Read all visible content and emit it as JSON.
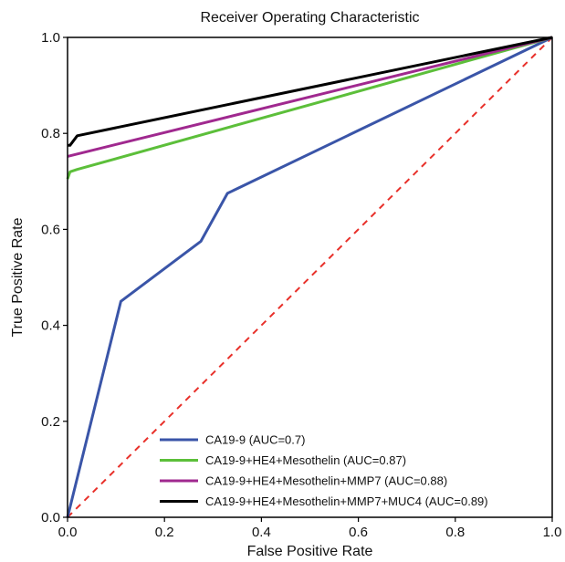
{
  "chart_data": {
    "type": "line",
    "title": "Receiver Operating Characteristic",
    "xlabel": "False Positive Rate",
    "ylabel": "True Positive Rate",
    "xlim": [
      0.0,
      1.0
    ],
    "ylim": [
      0.0,
      1.0
    ],
    "x_ticks": [
      0.0,
      0.2,
      0.4,
      0.6,
      0.8,
      1.0
    ],
    "y_ticks": [
      0.0,
      0.2,
      0.4,
      0.6,
      0.8,
      1.0
    ],
    "x_tick_labels": [
      "0.0",
      "0.2",
      "0.4",
      "0.6",
      "0.8",
      "1.0"
    ],
    "y_tick_labels": [
      "0.0",
      "0.2",
      "0.4",
      "0.6",
      "0.8",
      "1.0"
    ],
    "grid": false,
    "legend_position": "lower-right",
    "reference_line": {
      "x": [
        0.0,
        1.0
      ],
      "y": [
        0.0,
        1.0
      ],
      "color": "#e8302a",
      "style": "dashed"
    },
    "series": [
      {
        "name": "CA19-9 (AUC=0.7)",
        "color": "#3a55a8",
        "x": [
          0.0,
          0.11,
          0.275,
          0.33,
          1.0
        ],
        "y": [
          0.0,
          0.45,
          0.575,
          0.675,
          1.0
        ]
      },
      {
        "name": "CA19-9+HE4+Mesothelin (AUC=0.87)",
        "color": "#5cbf3a",
        "x": [
          0.0,
          0.005,
          0.02,
          1.0
        ],
        "y": [
          0.705,
          0.72,
          0.725,
          1.0
        ]
      },
      {
        "name": "CA19-9+HE4+Mesothelin+MMP7 (AUC=0.88)",
        "color": "#a0298f",
        "x": [
          0.0,
          1.0
        ],
        "y": [
          0.752,
          1.0
        ]
      },
      {
        "name": "CA19-9+HE4+Mesothelin+MMP7+MUC4 (AUC=0.89)",
        "color": "#000000",
        "x": [
          0.0,
          0.005,
          0.02,
          1.0
        ],
        "y": [
          0.775,
          0.775,
          0.795,
          1.0
        ]
      }
    ]
  }
}
